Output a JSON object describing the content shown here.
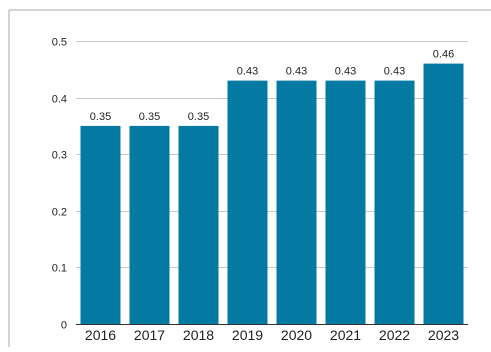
{
  "chart_data": {
    "type": "bar",
    "title": "",
    "xlabel": "",
    "ylabel": "",
    "categories": [
      "2016",
      "2017",
      "2018",
      "2019",
      "2020",
      "2021",
      "2022",
      "2023"
    ],
    "values": [
      0.35,
      0.35,
      0.35,
      0.43,
      0.43,
      0.43,
      0.43,
      0.46
    ],
    "data_labels": [
      "0.35",
      "0.35",
      "0.35",
      "0.43",
      "0.43",
      "0.43",
      "0.43",
      "0.46"
    ],
    "ylim": [
      0,
      0.5
    ],
    "yticks": [
      0,
      0.1,
      0.2,
      0.3,
      0.4,
      0.5
    ],
    "ytick_labels": [
      "0",
      "0.1",
      "0.2",
      "0.3",
      "0.4",
      "0.5"
    ],
    "grid": true,
    "legend": "none",
    "colors": {
      "bar": "#0479a1",
      "grid": "#c8c8c8",
      "axis": "#333333",
      "frame": "#a8a8a8",
      "text": "#222222"
    }
  }
}
